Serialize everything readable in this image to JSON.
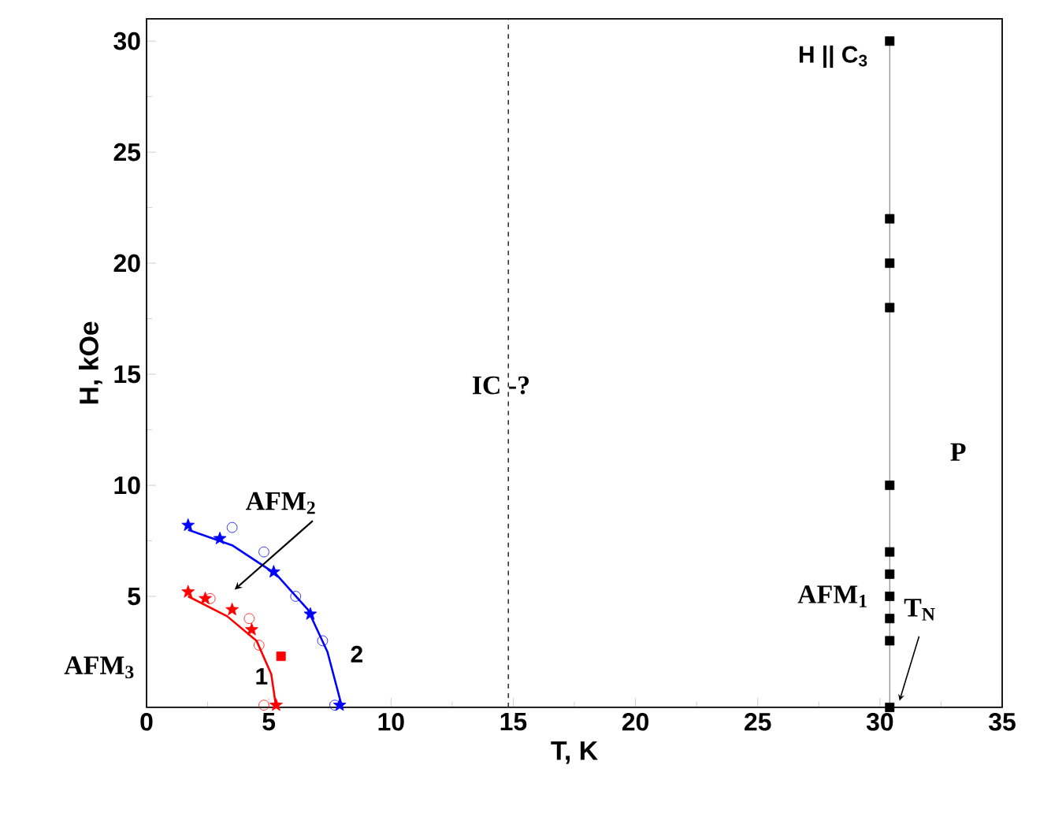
{
  "chart_data": {
    "type": "scatter",
    "xlabel": "T, K",
    "ylabel": "H, kOe",
    "xlim": [
      0,
      35
    ],
    "ylim": [
      0,
      31
    ],
    "xticks": [
      0,
      5,
      10,
      15,
      20,
      25,
      30,
      35
    ],
    "yticks": [
      5,
      10,
      15,
      20,
      25,
      30
    ],
    "tick_labels": true,
    "series": [
      {
        "type": "line",
        "color": "#ff0000",
        "marker": "none",
        "x": [
          1.7,
          3.3,
          4.5,
          5.1,
          5.3
        ],
        "values": [
          5.0,
          4.1,
          3.0,
          1.5,
          0
        ]
      },
      {
        "color": "#ff0000",
        "marker": "star",
        "x": [
          1.7,
          2.4,
          3.5,
          4.3,
          5.3
        ],
        "values": [
          5.2,
          4.9,
          4.4,
          3.5,
          0.1
        ]
      },
      {
        "color": "#ff0000",
        "marker": "circle",
        "x": [
          2.6,
          4.2,
          4.6,
          4.8
        ],
        "values": [
          4.9,
          4.0,
          2.8,
          0.1
        ]
      },
      {
        "color": "#ff0000",
        "marker": "square",
        "x": [
          5.5
        ],
        "values": [
          2.3
        ]
      },
      {
        "type": "line",
        "color": "#0000ff",
        "marker": "none",
        "x": [
          1.7,
          3.5,
          5.3,
          6.6,
          7.4,
          8.0
        ],
        "values": [
          8.0,
          7.3,
          6.0,
          4.4,
          2.5,
          0
        ]
      },
      {
        "color": "#0000ff",
        "marker": "star",
        "x": [
          1.7,
          3.0,
          5.2,
          6.7,
          7.9
        ],
        "values": [
          8.2,
          7.6,
          6.1,
          4.2,
          0.1
        ]
      },
      {
        "color": "#0000ff",
        "marker": "circle",
        "x": [
          3.5,
          4.8,
          6.1,
          7.2,
          7.7
        ],
        "values": [
          8.1,
          7.0,
          5.0,
          3.0,
          0.1
        ]
      },
      {
        "type": "line",
        "color": "#888888",
        "marker": "none",
        "x": [
          30.4,
          30.4
        ],
        "values": [
          0,
          30
        ]
      },
      {
        "color": "#000000",
        "marker": "square",
        "x": [
          30.4,
          30.4,
          30.4,
          30.4,
          30.4,
          30.4,
          30.4,
          30.4,
          30.4,
          30.4,
          30.4
        ],
        "values": [
          30,
          22,
          20,
          18,
          10,
          7,
          6,
          5,
          4,
          3,
          0
        ]
      }
    ],
    "ref_lines": [
      {
        "axis": "x",
        "value": 14.8,
        "color": "#333333",
        "line_style": "dashed"
      }
    ],
    "annotations": [
      "H || C$_{3}$",
      "IC -?",
      "P",
      "AFM$_{1}$",
      "T$_{N}$",
      "AFM$_{2}$",
      "AFM$_{3}$",
      "1",
      "2"
    ]
  }
}
